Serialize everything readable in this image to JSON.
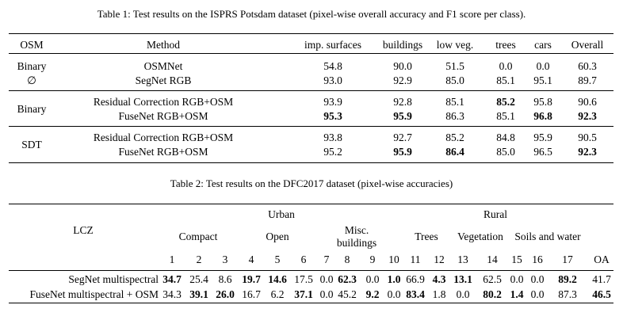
{
  "table1": {
    "caption": "Table 1: Test results on the ISPRS Potsdam dataset (pixel-wise overall accuracy and F1 score per class).",
    "headers": [
      "OSM",
      "Method",
      "imp. surfaces",
      "buildings",
      "low veg.",
      "trees",
      "cars",
      "Overall"
    ],
    "groups": [
      {
        "osm_lines": [
          "Binary",
          "∅"
        ],
        "rows": [
          {
            "method": "OSMNet",
            "values": [
              "54.8",
              "90.0",
              "51.5",
              "0.0",
              "0.0",
              "60.3"
            ],
            "bold": [
              false,
              false,
              false,
              false,
              false,
              false
            ]
          },
          {
            "method": "SegNet RGB",
            "values": [
              "93.0",
              "92.9",
              "85.0",
              "85.1",
              "95.1",
              "89.7"
            ],
            "bold": [
              false,
              false,
              false,
              false,
              false,
              false
            ]
          }
        ]
      },
      {
        "osm_lines": [
          "Binary"
        ],
        "rows": [
          {
            "method": "Residual Correction RGB+OSM",
            "values": [
              "93.9",
              "92.8",
              "85.1",
              "85.2",
              "95.8",
              "90.6"
            ],
            "bold": [
              false,
              false,
              false,
              true,
              false,
              false
            ]
          },
          {
            "method": "FuseNet RGB+OSM",
            "values": [
              "95.3",
              "95.9",
              "86.3",
              "85.1",
              "96.8",
              "92.3"
            ],
            "bold": [
              true,
              true,
              false,
              false,
              true,
              true
            ]
          }
        ]
      },
      {
        "osm_lines": [
          "SDT"
        ],
        "rows": [
          {
            "method": "Residual Correction RGB+OSM",
            "values": [
              "93.8",
              "92.7",
              "85.2",
              "84.8",
              "95.9",
              "90.5"
            ],
            "bold": [
              false,
              false,
              false,
              false,
              false,
              false
            ]
          },
          {
            "method": "FuseNet RGB+OSM",
            "values": [
              "95.2",
              "95.9",
              "86.4",
              "85.0",
              "96.5",
              "92.3"
            ],
            "bold": [
              false,
              true,
              true,
              false,
              false,
              true
            ]
          }
        ]
      }
    ]
  },
  "table2": {
    "caption": "Table 2: Test results on the DFC2017 dataset (pixel-wise accuracies)",
    "lcz_label": "LCZ",
    "urban": "Urban",
    "rural": "Rural",
    "compact": "Compact",
    "open": "Open",
    "misc_line1": "Misc.",
    "misc_line2": "buildings",
    "trees": "Trees",
    "vegetation": "Vegetation",
    "soils": "Soils and water",
    "numbers": [
      "1",
      "2",
      "3",
      "4",
      "5",
      "6",
      "7",
      "8",
      "9",
      "10",
      "11",
      "12",
      "13",
      "14",
      "15",
      "16",
      "17",
      "OA"
    ],
    "rows": [
      {
        "label": "SegNet multispectral",
        "values": [
          "34.7",
          "25.4",
          "8.6",
          "19.7",
          "14.6",
          "17.5",
          "0.0",
          "62.3",
          "0.0",
          "1.0",
          "66.9",
          "4.3",
          "13.1",
          "62.5",
          "0.0",
          "0.0",
          "89.2",
          "41.7"
        ],
        "bold": [
          true,
          false,
          false,
          true,
          true,
          false,
          false,
          true,
          false,
          true,
          false,
          true,
          true,
          false,
          false,
          false,
          true,
          false
        ]
      },
      {
        "label": "FuseNet multispectral + OSM",
        "values": [
          "34.3",
          "39.1",
          "26.0",
          "16.7",
          "6.2",
          "37.1",
          "0.0",
          "45.2",
          "9.2",
          "0.0",
          "83.4",
          "1.8",
          "0.0",
          "80.2",
          "1.4",
          "0.0",
          "87.3",
          "46.5"
        ],
        "bold": [
          false,
          true,
          true,
          false,
          false,
          true,
          false,
          false,
          true,
          false,
          true,
          false,
          false,
          true,
          true,
          false,
          false,
          true
        ]
      }
    ]
  }
}
